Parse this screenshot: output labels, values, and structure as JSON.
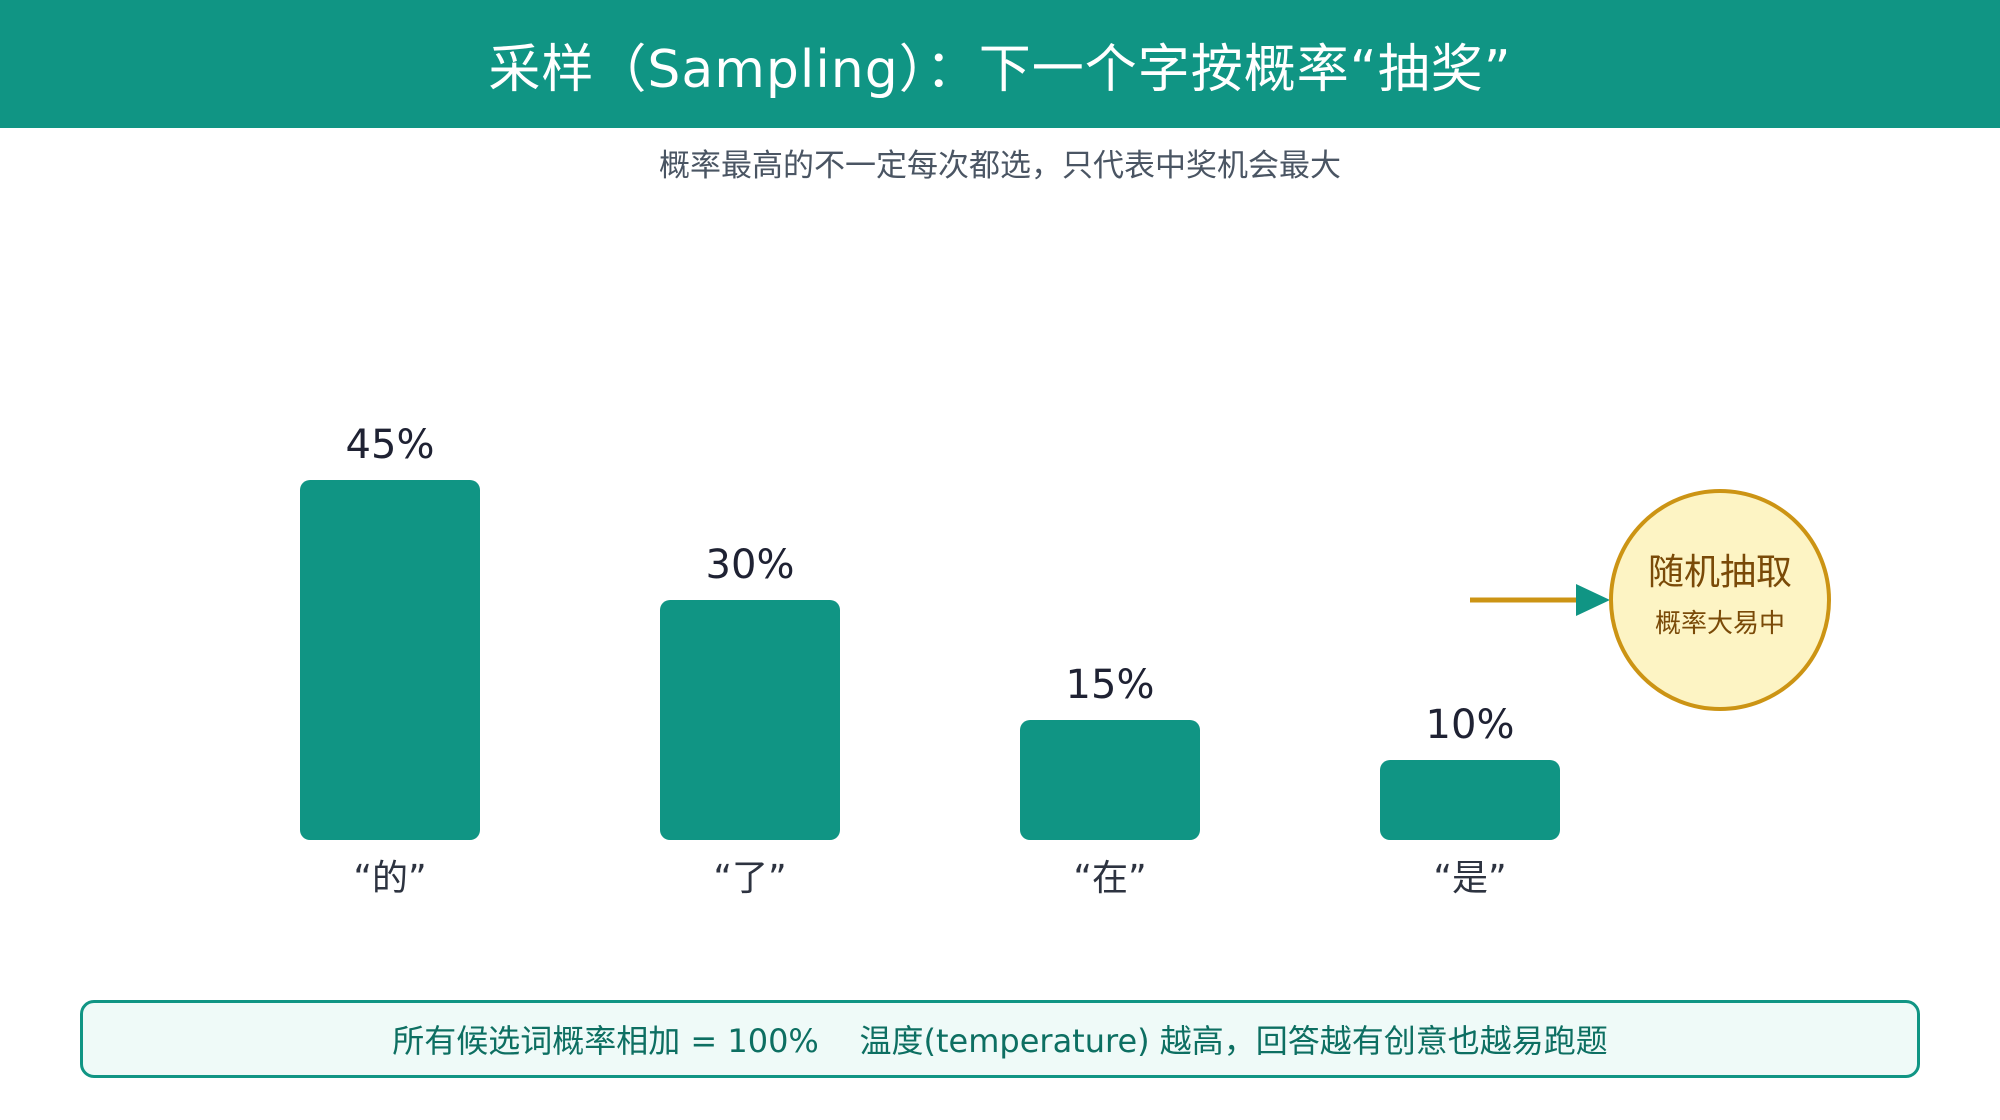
{
  "header": {
    "title": "采样（Sampling）：下一个字按概率“抽奖”"
  },
  "subtitle": "概率最高的不一定每次都选，只代表中奖机会最大",
  "chart_data": {
    "type": "bar",
    "categories": [
      "“的”",
      "“了”",
      "“在”",
      "“是”"
    ],
    "values": [
      45,
      30,
      15,
      10
    ],
    "value_labels": [
      "45%",
      "30%",
      "15%",
      "10%"
    ],
    "unit": "%",
    "ylim": [
      0,
      50
    ],
    "grid": false,
    "bar_color": "#109584",
    "label_color": "#1f2233",
    "category_color": "#2d3340"
  },
  "callout": {
    "title": "随机抽取",
    "subtitle": "概率大易中",
    "fill": "#fdf4c4",
    "stroke": "#cc9414",
    "text_color": "#7a4a08",
    "arrow_line_color": "#cc9414",
    "arrow_head_color": "#109584"
  },
  "footer": {
    "text": "所有候选词概率相加 = 100%    温度(temperature) 越高，回答越有创意也越易跑题"
  }
}
